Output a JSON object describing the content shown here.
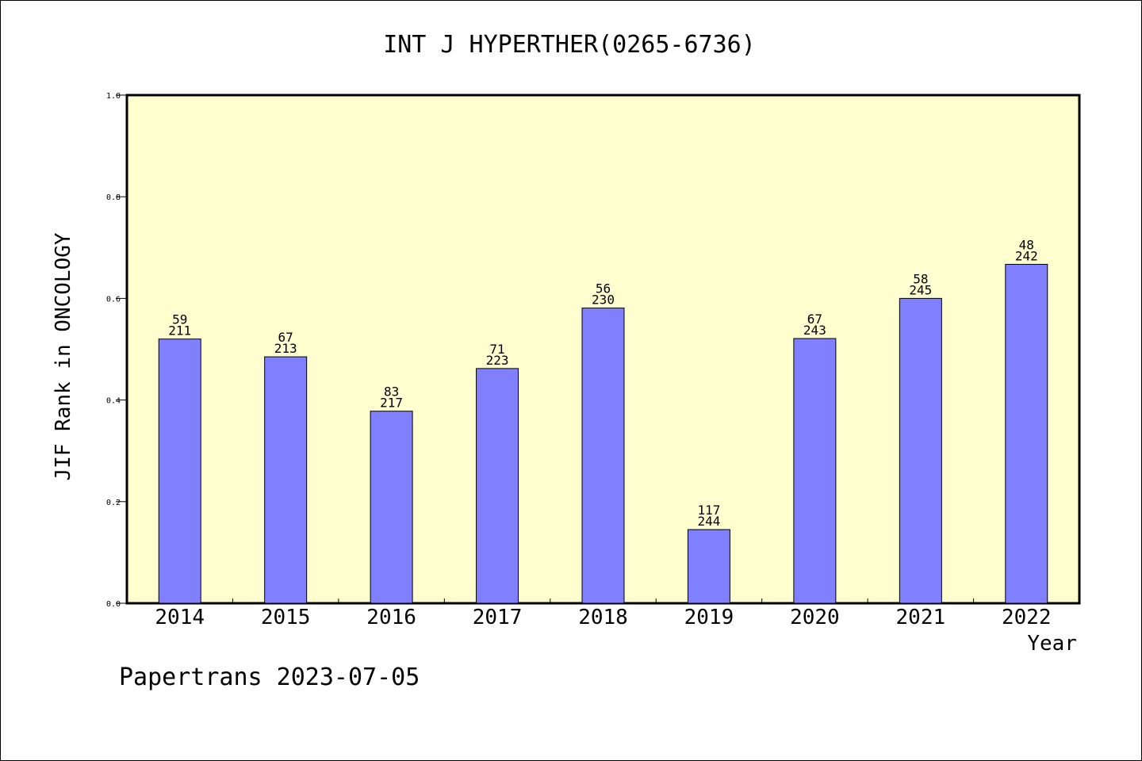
{
  "chart_data": {
    "type": "bar",
    "title": "INT J HYPERTHER(0265-6736)",
    "xlabel": "Year",
    "ylabel": "JIF Rank in ONCOLOGY",
    "ylim": [
      0,
      1.0
    ],
    "yticks": [
      "0.0",
      "0.2",
      "0.4",
      "0.6",
      "0.8",
      "1.0"
    ],
    "categories": [
      "2014",
      "2015",
      "2016",
      "2017",
      "2018",
      "2019",
      "2020",
      "2021",
      "2022"
    ],
    "values": [
      0.52,
      0.485,
      0.378,
      0.462,
      0.581,
      0.145,
      0.521,
      0.6,
      0.667
    ],
    "rank": [
      "59",
      "67",
      "83",
      "71",
      "56",
      "117",
      "67",
      "58",
      "48"
    ],
    "total": [
      "211",
      "213",
      "217",
      "223",
      "230",
      "244",
      "243",
      "245",
      "242"
    ],
    "plot_background": "#ffffd0",
    "bar_color": "#8080ff",
    "grid": false
  },
  "footer": "Papertrans 2023-07-05"
}
